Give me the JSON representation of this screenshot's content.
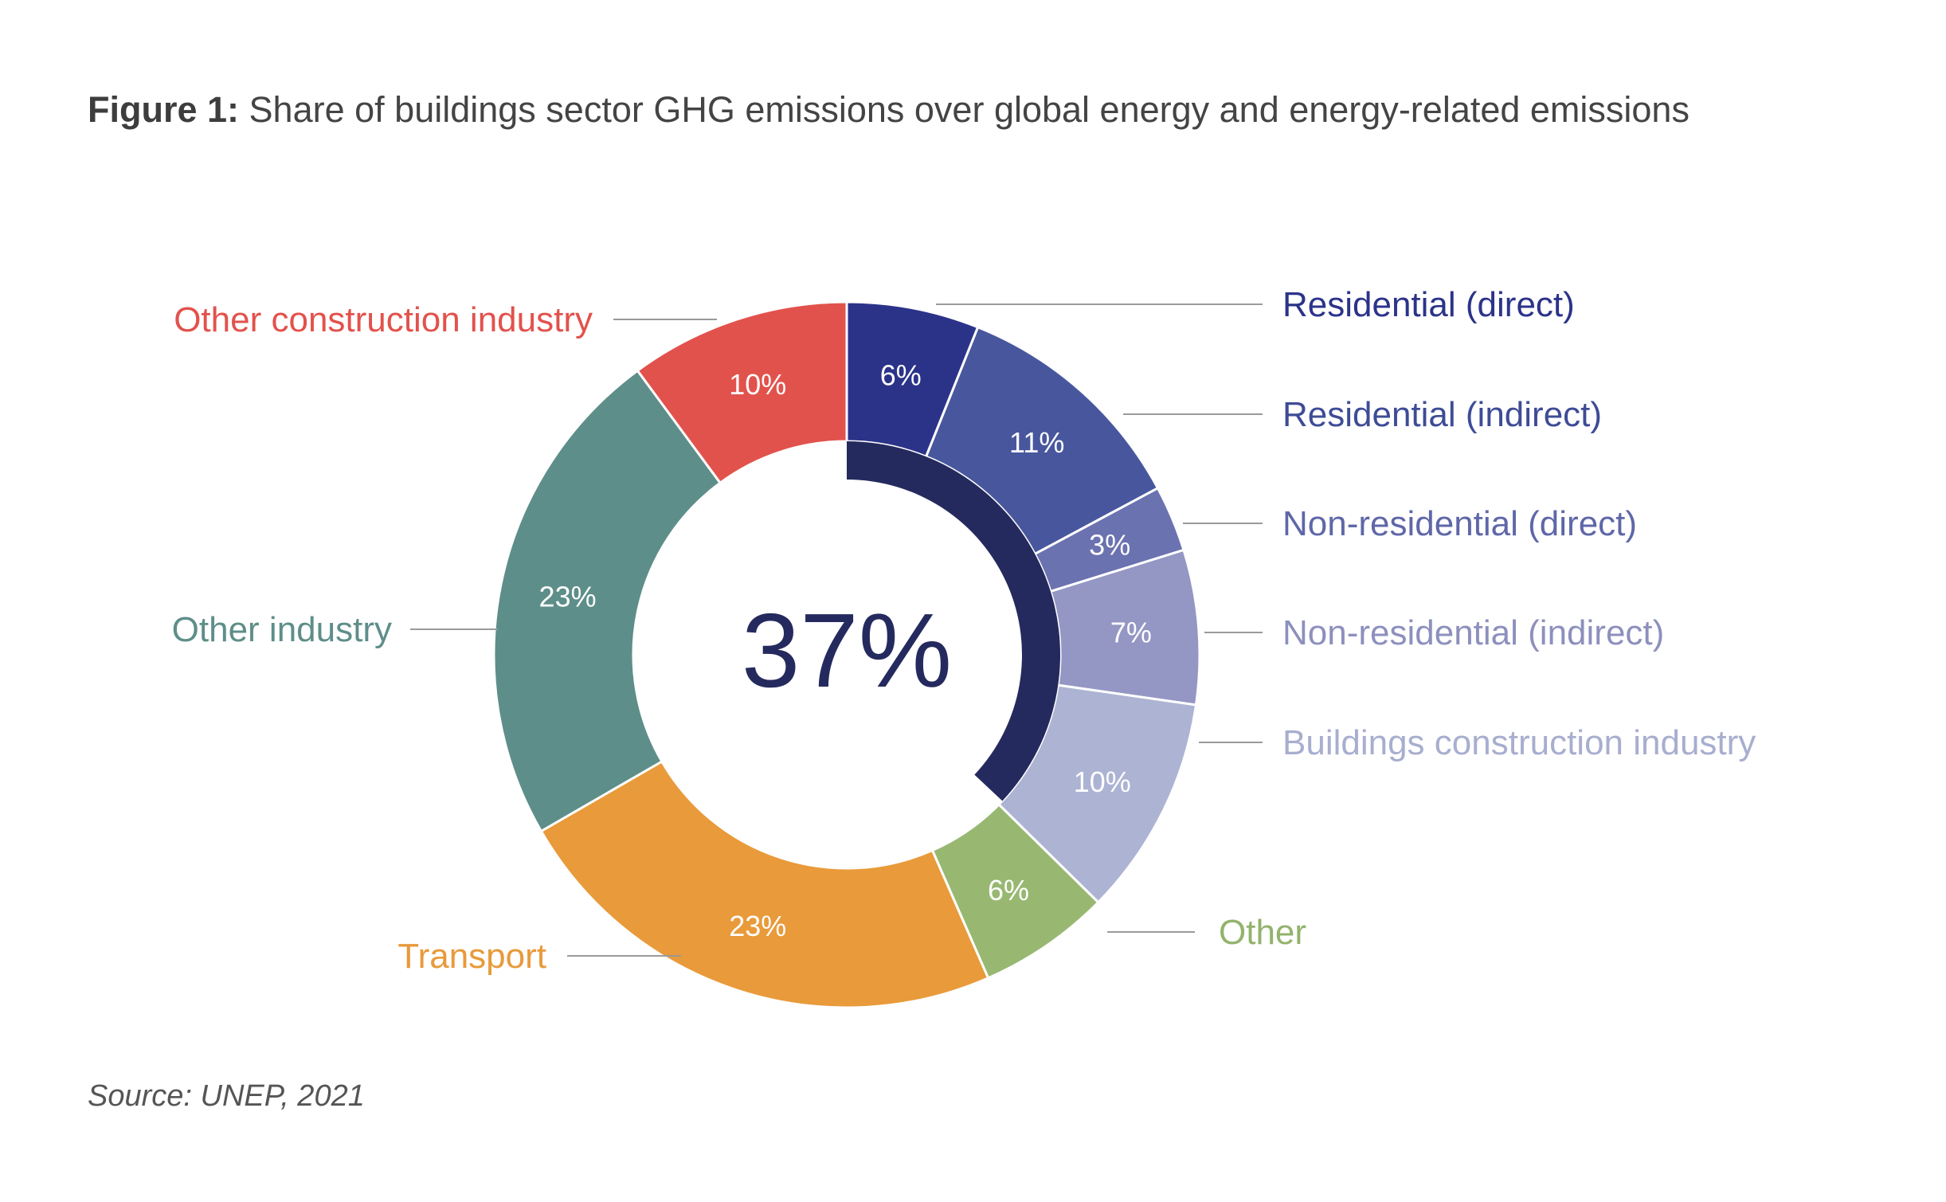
{
  "figure": {
    "label": "Figure 1:",
    "title": "Share of buildings sector GHG emissions over global energy and energy-related emissions",
    "source": "Source: UNEP, 2021"
  },
  "chart_data": {
    "type": "pie",
    "variant": "donut",
    "title": "Share of buildings sector GHG emissions over global energy and energy-related emissions",
    "center_label": "37%",
    "center_arc_share": 37,
    "center_arc_color": "#252a5e",
    "slices": [
      {
        "name": "Residential (direct)",
        "value": 6,
        "label": "6%",
        "color": "#2b3389",
        "legend_color": "#2b3389"
      },
      {
        "name": "Residential (indirect)",
        "value": 11,
        "label": "11%",
        "color": "#48579d",
        "legend_color": "#3e4c96"
      },
      {
        "name": "Non-residential (direct)",
        "value": 3,
        "label": "3%",
        "color": "#6b72b0",
        "legend_color": "#5f67a8"
      },
      {
        "name": "Non-residential (indirect)",
        "value": 7,
        "label": "7%",
        "color": "#9497c4",
        "legend_color": "#8d90bd"
      },
      {
        "name": "Buildings construction industry",
        "value": 10,
        "label": "10%",
        "color": "#adb3d3",
        "legend_color": "#a8aecf"
      },
      {
        "name": "Other",
        "value": 6,
        "label": "6%",
        "color": "#98b872",
        "legend_color": "#92b36c"
      },
      {
        "name": "Transport",
        "value": 23,
        "label": "23%",
        "color": "#e99a3a",
        "legend_color": "#e89a3a"
      },
      {
        "name": "Other industry",
        "value": 23,
        "label": "23%",
        "color": "#5e8e89",
        "legend_color": "#5e8e89"
      },
      {
        "name": "Other construction industry",
        "value": 10,
        "label": "10%",
        "color": "#e2524c",
        "legend_color": "#e2524c"
      }
    ]
  }
}
